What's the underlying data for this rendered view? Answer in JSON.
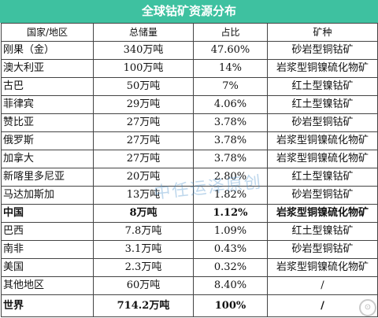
{
  "title": "全球钴矿资源分布",
  "columns": [
    "国家/地区",
    "总储量",
    "占比",
    "矿种"
  ],
  "rows": [
    {
      "region": "刚果（金）",
      "reserve": "340万吨",
      "share": "47.60%",
      "type": "砂岩型铜钴矿"
    },
    {
      "region": "澳大利亚",
      "reserve": "100万吨",
      "share": "14%",
      "type": "岩浆型铜镍硫化物矿"
    },
    {
      "region": "古巴",
      "reserve": "50万吨",
      "share": "7%",
      "type": "红土型镍钴矿"
    },
    {
      "region": "菲律宾",
      "reserve": "29万吨",
      "share": "4.06%",
      "type": "红土型镍钴矿"
    },
    {
      "region": "赞比亚",
      "reserve": "27万吨",
      "share": "3.78%",
      "type": "砂岩型铜钴矿"
    },
    {
      "region": "俄罗斯",
      "reserve": "27万吨",
      "share": "3.78%",
      "type": "岩浆型铜镍硫化物矿"
    },
    {
      "region": "加拿大",
      "reserve": "27万吨",
      "share": "3.78%",
      "type": "岩浆型铜镍硫化物矿"
    },
    {
      "region": "新喀里多尼亚",
      "reserve": "20万吨",
      "share": "2.80%",
      "type": "红土型镍钴矿"
    },
    {
      "region": "马达加斯加",
      "reserve": "13万吨",
      "share": "1.82%",
      "type": "砂岩型铜钴矿"
    },
    {
      "region": "中国",
      "reserve": "8万吨",
      "share": "1.12%",
      "type": "岩浆型铜镍硫化物矿",
      "bold": true
    },
    {
      "region": "巴西",
      "reserve": "7.8万吨",
      "share": "1.09%",
      "type": "红土型镍钴矿"
    },
    {
      "region": "南非",
      "reserve": "3.1万吨",
      "share": "0.43%",
      "type": "砂岩型铜钴矿"
    },
    {
      "region": "美国",
      "reserve": "2.3万吨",
      "share": "0.32%",
      "type": "岩浆型铜镍硫化物矿"
    },
    {
      "region": "其他地区",
      "reserve": "60万吨",
      "share": "8.40%",
      "type": "/"
    },
    {
      "region": "世界",
      "reserve": "714.2万吨",
      "share": "100%",
      "type": "/",
      "bold": true
    }
  ],
  "watermark": "中任运泽原创",
  "colors": {
    "title_bg": "#3ec1a0"
  }
}
